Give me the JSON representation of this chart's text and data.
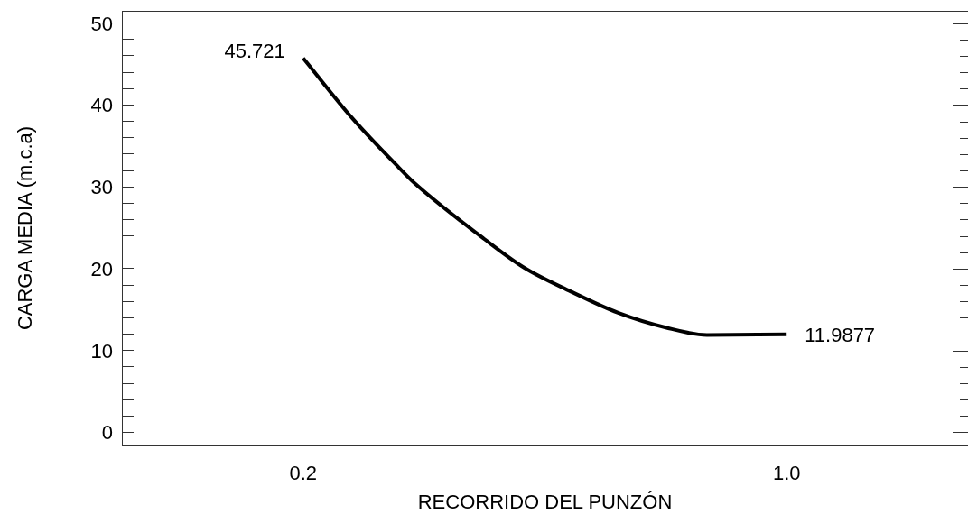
{
  "chart_data": {
    "type": "line",
    "xlabel": "RECORRIDO DEL PUNZÓN",
    "ylabel": "CARGA MEDIA (m.c.a)",
    "x": [
      0.2,
      0.281,
      0.359,
      0.385,
      0.5,
      0.566,
      0.643,
      0.721,
      0.8,
      0.868,
      1.0
    ],
    "series": [
      {
        "color": "#000000",
        "values": [
          45.721,
          38.4,
          32.3,
          30.4,
          23.6,
          20.1,
          17.2,
          14.6,
          12.8,
          11.9,
          11.9877
        ]
      }
    ],
    "xlim": [
      -0.1,
      1.3
    ],
    "xticks": [
      0.2,
      {
        "value": 1.0,
        "label": "1.0"
      }
    ],
    "ylim": [
      -1.6,
      51.5
    ],
    "yticks": [
      0,
      {
        "value": 2,
        "label": null
      },
      {
        "value": 4,
        "label": null
      },
      {
        "value": 6,
        "label": null
      },
      {
        "value": 8,
        "label": null
      },
      10,
      {
        "value": 12,
        "label": null
      },
      {
        "value": 14,
        "label": null
      },
      {
        "value": 16,
        "label": null
      },
      {
        "value": 18,
        "label": null
      },
      20,
      {
        "value": 22,
        "label": null
      },
      {
        "value": 24,
        "label": null
      },
      {
        "value": 26,
        "label": null
      },
      {
        "value": 28,
        "label": null
      },
      30,
      {
        "value": 32,
        "label": null
      },
      {
        "value": 34,
        "label": null
      },
      {
        "value": 36,
        "label": null
      },
      {
        "value": 38,
        "label": null
      },
      40,
      {
        "value": 42,
        "label": null
      },
      {
        "value": 44,
        "label": null
      },
      {
        "value": 46,
        "label": null
      },
      {
        "value": 48,
        "label": null
      },
      50
    ],
    "grid": false,
    "legend": false,
    "marker": "none",
    "line_style": "solid",
    "annotations": [
      {
        "text": "45.721",
        "x": 0.2,
        "y": 45.721
      },
      {
        "text": "11.9877",
        "x": 1.0,
        "y": 11.9877
      }
    ]
  }
}
